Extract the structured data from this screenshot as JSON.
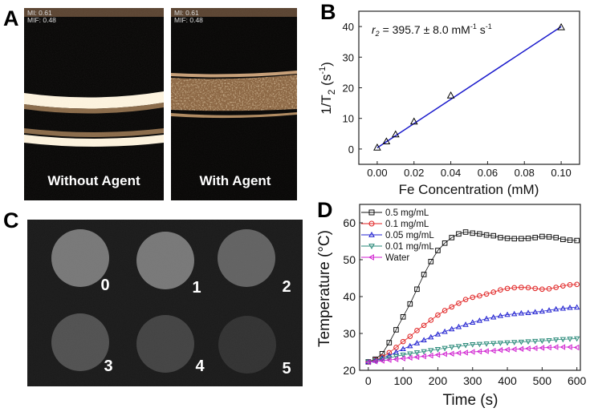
{
  "panels": {
    "a": {
      "label": "A",
      "left_image": {
        "mi": "MI: 0.61",
        "mif": "MIF: 0.48",
        "caption": "Without Agent"
      },
      "right_image": {
        "mi": "MI: 0.61",
        "mif": "MIF: 0.48",
        "caption": "With Agent"
      }
    },
    "b": {
      "label": "B"
    },
    "c": {
      "label": "C",
      "sample_labels": [
        "0",
        "1",
        "2",
        "3",
        "4",
        "5"
      ],
      "sample_brightness": [
        0.55,
        0.55,
        0.42,
        0.32,
        0.24,
        0.14
      ]
    },
    "d": {
      "label": "D"
    }
  },
  "chart_data": [
    {
      "panel": "B",
      "type": "scatter",
      "xlabel": "Fe Concentration (mM)",
      "ylabel": {
        "main": "1/T",
        "sub": "2",
        "unit_open": " (s",
        "unit_sup": "-1",
        "unit_close": ")"
      },
      "annotation": {
        "r": "r",
        "sub": "2",
        "text": " = 395.7 ± 8.0 mM",
        "sup1": "-1",
        "s": " s",
        "sup2": "-1"
      },
      "xlim": [
        -0.01,
        0.11
      ],
      "ylim": [
        -5,
        45
      ],
      "xticks": [
        "0.00",
        "0.02",
        "0.04",
        "0.06",
        "0.08",
        "0.10"
      ],
      "yticks": [
        "0",
        "10",
        "20",
        "30",
        "40"
      ],
      "points": {
        "x": [
          0,
          0.005,
          0.01,
          0.02,
          0.04,
          0.1
        ],
        "y": [
          0.5,
          2.5,
          4.8,
          9.0,
          17.5,
          39.8
        ]
      },
      "fit": {
        "slope": 395.7,
        "intercept": 0.4,
        "x_range": [
          0,
          0.1
        ]
      },
      "marker": "triangle-up",
      "colors": {
        "points": "#000000",
        "fit": "#1a1acc"
      }
    },
    {
      "panel": "D",
      "type": "line",
      "xlabel": "Time (s)",
      "ylabel": "Temperature (°C)",
      "xlim": [
        -25,
        610
      ],
      "ylim": [
        20,
        65
      ],
      "xticks": [
        "0",
        "100",
        "200",
        "300",
        "400",
        "500",
        "600"
      ],
      "yticks": [
        "20",
        "30",
        "40",
        "50",
        "60"
      ],
      "legend": "top-left",
      "x": [
        0,
        20,
        40,
        60,
        80,
        100,
        120,
        140,
        160,
        180,
        200,
        220,
        240,
        260,
        280,
        300,
        320,
        340,
        360,
        380,
        400,
        420,
        440,
        460,
        480,
        500,
        520,
        540,
        560,
        580,
        600
      ],
      "series": [
        {
          "name": "0.5 mg/mL",
          "marker": "square",
          "color": "#111111",
          "values": [
            22.3,
            23,
            24.5,
            27.5,
            31,
            34.5,
            38,
            42,
            46,
            49.5,
            52.5,
            54.5,
            56,
            57,
            57.5,
            57.2,
            57,
            56.7,
            56.5,
            56,
            55.8,
            55.7,
            55.7,
            55.8,
            56,
            56.3,
            56.2,
            56,
            55.5,
            55.3,
            55.2
          ]
        },
        {
          "name": "0.1 mg/mL",
          "marker": "circle",
          "color": "#e02020",
          "values": [
            22.3,
            22.8,
            23.6,
            24.8,
            26.2,
            27.8,
            29.2,
            30.8,
            32.2,
            33.6,
            35,
            36.2,
            37.2,
            38.2,
            39.2,
            39.8,
            40.2,
            40.7,
            41.2,
            41.8,
            42.2,
            42.4,
            42.5,
            42.4,
            42.2,
            42,
            42.1,
            42.5,
            42.9,
            43.2,
            43.3
          ]
        },
        {
          "name": "0.05 mg/mL",
          "marker": "triangle-up",
          "color": "#2020d0",
          "values": [
            22.3,
            22.7,
            23.3,
            24,
            24.9,
            25.8,
            26.6,
            27.4,
            28.2,
            29,
            29.8,
            30.5,
            31.2,
            31.8,
            32.4,
            33,
            33.5,
            34,
            34.4,
            34.8,
            35.1,
            35.3,
            35.5,
            35.6,
            35.8,
            36,
            36.3,
            36.6,
            36.8,
            37,
            37.1
          ]
        },
        {
          "name": "0.01 mg/mL",
          "marker": "triangle-down",
          "color": "#2a8a7a",
          "values": [
            22.3,
            22.6,
            23,
            23.4,
            23.8,
            24.2,
            24.5,
            24.8,
            25.1,
            25.4,
            25.7,
            26,
            26.3,
            26.5,
            26.8,
            27,
            27.1,
            27.2,
            27.3,
            27.4,
            27.5,
            27.6,
            27.7,
            27.8,
            27.9,
            28,
            28.1,
            28.3,
            28.4,
            28.5,
            28.6
          ]
        },
        {
          "name": "Water",
          "marker": "triangle-left",
          "color": "#d020d0",
          "values": [
            22.2,
            22.4,
            22.6,
            22.8,
            23,
            23.2,
            23.4,
            23.6,
            23.8,
            24,
            24.2,
            24.4,
            24.5,
            24.7,
            24.8,
            25,
            25.1,
            25.2,
            25.3,
            25.5,
            25.6,
            25.7,
            25.8,
            25.9,
            26,
            26.1,
            26.2,
            26.3,
            26.3,
            26.3,
            26.2
          ]
        }
      ]
    }
  ]
}
